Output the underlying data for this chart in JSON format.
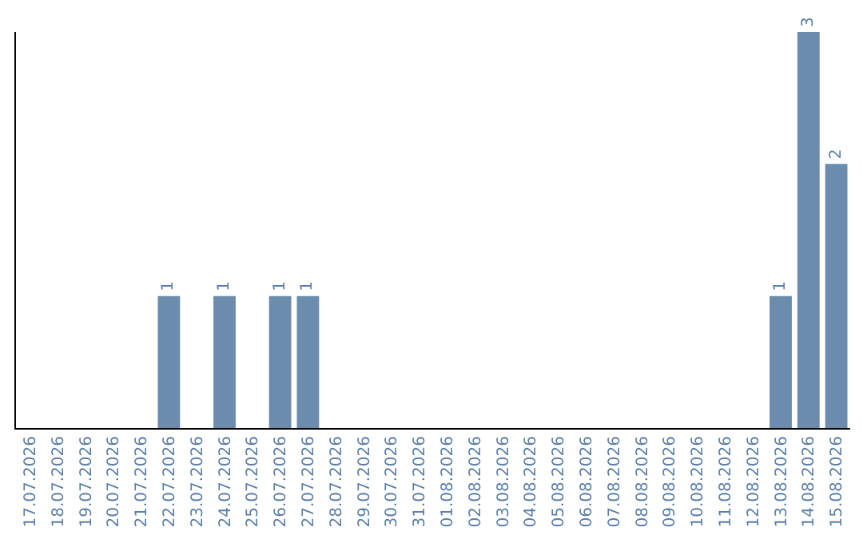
{
  "chart_data": {
    "type": "bar",
    "categories": [
      "17.07.2026",
      "18.07.2026",
      "19.07.2026",
      "20.07.2026",
      "21.07.2026",
      "22.07.2026",
      "23.07.2026",
      "24.07.2026",
      "25.07.2026",
      "26.07.2026",
      "27.07.2026",
      "28.07.2026",
      "29.07.2026",
      "30.07.2026",
      "31.07.2026",
      "01.08.2026",
      "02.08.2026",
      "03.08.2026",
      "04.08.2026",
      "05.08.2026",
      "06.08.2026",
      "07.08.2026",
      "08.08.2026",
      "09.08.2026",
      "10.08.2026",
      "11.08.2026",
      "12.08.2026",
      "13.08.2026",
      "14.08.2026",
      "15.08.2026"
    ],
    "values": [
      0,
      0,
      0,
      0,
      0,
      1,
      0,
      1,
      0,
      1,
      1,
      0,
      0,
      0,
      0,
      0,
      0,
      0,
      0,
      0,
      0,
      0,
      0,
      0,
      0,
      0,
      0,
      1,
      3,
      2
    ],
    "value_labels": [
      null,
      null,
      null,
      null,
      null,
      "1",
      null,
      "1",
      null,
      "1",
      "1",
      null,
      null,
      null,
      null,
      null,
      null,
      null,
      null,
      null,
      null,
      null,
      null,
      null,
      null,
      null,
      null,
      "1",
      "3",
      "2"
    ],
    "color": "#6b8cad",
    "tick_labels": "x",
    "legend": false
  }
}
